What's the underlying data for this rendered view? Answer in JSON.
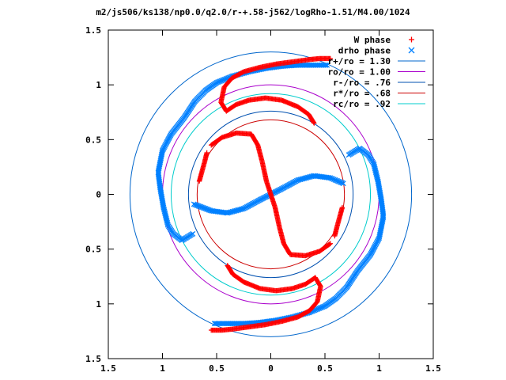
{
  "chart_data": {
    "type": "scatter",
    "title": "m2/js506/ks138/np0.0/q2.0/r-+.58-j562/logRho-1.51/M4.00/1024",
    "xlim": [
      -1.5,
      1.5
    ],
    "ylim": [
      -1.5,
      1.5
    ],
    "x_tick_values": [
      -1.5,
      -1,
      -0.5,
      0,
      0.5,
      1,
      1.5
    ],
    "x_tick_labels": [
      "1.5",
      "1",
      "0.5",
      "0",
      "0.5",
      "1",
      "1.5"
    ],
    "y_tick_values": [
      1.5,
      1,
      0.5,
      0,
      -0.5,
      -1,
      -1.5
    ],
    "y_tick_labels": [
      "1.5",
      "1",
      "0.5",
      "0",
      "0.5",
      "1",
      "1.5"
    ],
    "grid": false,
    "legend_position": "top-right",
    "series": [
      {
        "name": "W phase",
        "kind": "points",
        "marker": "plus",
        "color": "#ff0000"
      },
      {
        "name": "drho phase",
        "kind": "points",
        "marker": "cross",
        "color": "#0080ff"
      },
      {
        "name": "r+/ro = 1.30",
        "kind": "circle",
        "radius": 1.3,
        "color": "#0066cc"
      },
      {
        "name": "ro/ro = 1.00",
        "kind": "circle",
        "radius": 1.0,
        "color": "#aa00cc"
      },
      {
        "name": "r-/ro = .76",
        "kind": "circle",
        "radius": 0.76,
        "color": "#0050b0"
      },
      {
        "name": "r*/ro = .68",
        "kind": "circle",
        "radius": 0.68,
        "color": "#cc0000"
      },
      {
        "name": "rc/ro = .92",
        "kind": "circle",
        "radius": 0.92,
        "color": "#00cccc"
      }
    ],
    "w_phase_paths": [
      [
        [
          -0.4,
          -0.65
        ],
        [
          -0.35,
          -0.73
        ],
        [
          -0.25,
          -0.8
        ],
        [
          -0.1,
          -0.86
        ],
        [
          0.05,
          -0.88
        ],
        [
          0.2,
          -0.86
        ],
        [
          0.32,
          -0.82
        ],
        [
          0.41,
          -0.76
        ],
        [
          0.46,
          -0.84
        ],
        [
          0.43,
          -0.98
        ],
        [
          0.36,
          -1.06
        ],
        [
          0.25,
          -1.12
        ],
        [
          0.1,
          -1.16
        ],
        [
          -0.05,
          -1.19
        ],
        [
          -0.2,
          -1.21
        ],
        [
          -0.35,
          -1.23
        ],
        [
          -0.45,
          -1.24
        ],
        [
          -0.55,
          -1.24
        ]
      ],
      [
        [
          0.4,
          0.65
        ],
        [
          0.35,
          0.73
        ],
        [
          0.25,
          0.8
        ],
        [
          0.1,
          0.86
        ],
        [
          -0.05,
          0.88
        ],
        [
          -0.2,
          0.86
        ],
        [
          -0.32,
          0.82
        ],
        [
          -0.41,
          0.76
        ],
        [
          -0.46,
          0.84
        ],
        [
          -0.43,
          0.98
        ],
        [
          -0.36,
          1.06
        ],
        [
          -0.25,
          1.12
        ],
        [
          -0.1,
          1.16
        ],
        [
          0.05,
          1.19
        ],
        [
          0.2,
          1.21
        ],
        [
          0.35,
          1.23
        ],
        [
          0.45,
          1.24
        ],
        [
          0.55,
          1.24
        ]
      ],
      [
        [
          0.55,
          -0.45
        ],
        [
          0.45,
          -0.52
        ],
        [
          0.32,
          -0.56
        ],
        [
          0.18,
          -0.55
        ],
        [
          0.12,
          -0.45
        ],
        [
          0.08,
          -0.3
        ],
        [
          0.04,
          -0.12
        ],
        [
          0,
          0
        ],
        [
          -0.04,
          0.12
        ],
        [
          -0.08,
          0.3
        ],
        [
          -0.12,
          0.45
        ],
        [
          -0.18,
          0.55
        ],
        [
          -0.32,
          0.56
        ],
        [
          -0.45,
          0.52
        ],
        [
          -0.55,
          0.45
        ]
      ],
      [
        [
          -0.59,
          0.38
        ],
        [
          -0.61,
          0.3
        ],
        [
          -0.66,
          0.12
        ]
      ],
      [
        [
          0.59,
          -0.38
        ],
        [
          0.61,
          -0.3
        ],
        [
          0.66,
          -0.12
        ]
      ]
    ],
    "drho_phase_paths": [
      [
        [
          -0.35,
          1.08
        ],
        [
          -0.5,
          1.02
        ],
        [
          -0.6,
          0.95
        ],
        [
          -0.7,
          0.85
        ],
        [
          -0.8,
          0.7
        ],
        [
          -0.92,
          0.55
        ],
        [
          -1.0,
          0.4
        ],
        [
          -1.04,
          0.2
        ],
        [
          -1.02,
          0.05
        ],
        [
          -0.99,
          -0.12
        ],
        [
          -0.95,
          -0.28
        ],
        [
          -0.9,
          -0.36
        ],
        [
          -0.82,
          -0.42
        ],
        [
          -0.72,
          -0.36
        ]
      ],
      [
        [
          0.35,
          -1.08
        ],
        [
          0.5,
          -1.02
        ],
        [
          0.6,
          -0.95
        ],
        [
          0.7,
          -0.85
        ],
        [
          0.8,
          -0.7
        ],
        [
          0.92,
          -0.55
        ],
        [
          1.0,
          -0.4
        ],
        [
          1.04,
          -0.2
        ],
        [
          1.02,
          -0.05
        ],
        [
          0.99,
          0.12
        ],
        [
          0.95,
          0.28
        ],
        [
          0.9,
          0.36
        ],
        [
          0.82,
          0.42
        ],
        [
          0.72,
          0.36
        ]
      ],
      [
        [
          -0.71,
          -0.09
        ],
        [
          -0.55,
          -0.15
        ],
        [
          -0.4,
          -0.17
        ],
        [
          -0.25,
          -0.13
        ],
        [
          -0.1,
          -0.05
        ],
        [
          0,
          0
        ],
        [
          0.1,
          0.05
        ],
        [
          0.25,
          0.13
        ],
        [
          0.4,
          0.17
        ],
        [
          0.55,
          0.15
        ],
        [
          0.67,
          0.1
        ]
      ],
      [
        [
          0.35,
          -1.08
        ],
        [
          0.2,
          -1.12
        ],
        [
          0.05,
          -1.15
        ],
        [
          -0.1,
          -1.17
        ],
        [
          -0.25,
          -1.18
        ],
        [
          -0.4,
          -1.18
        ],
        [
          -0.52,
          -1.18
        ]
      ],
      [
        [
          -0.35,
          1.08
        ],
        [
          -0.2,
          1.12
        ],
        [
          -0.05,
          1.15
        ],
        [
          0.1,
          1.17
        ],
        [
          0.25,
          1.18
        ],
        [
          0.4,
          1.18
        ],
        [
          0.52,
          1.18
        ]
      ]
    ]
  }
}
